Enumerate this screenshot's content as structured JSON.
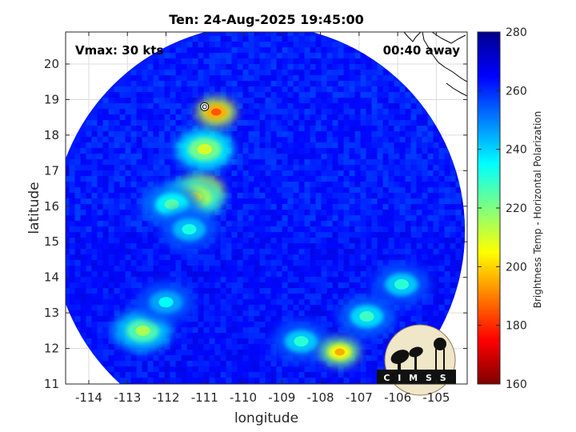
{
  "chart_data": {
    "type": "heatmap",
    "title": "Ten: 24-Aug-2025 19:45:00",
    "xlabel": "longitude",
    "ylabel": "latitude",
    "xlim": [
      -114.6,
      -104.2
    ],
    "ylim": [
      11,
      20.9
    ],
    "x_ticks": [
      "-114",
      "-113",
      "-112",
      "-111",
      "-110",
      "-109",
      "-108",
      "-107",
      "-106",
      "-105"
    ],
    "x_tick_values": [
      -114,
      -113,
      -112,
      -111,
      -110,
      -109,
      -108,
      -107,
      -106,
      -105
    ],
    "y_ticks": [
      "11",
      "12",
      "13",
      "14",
      "15",
      "16",
      "17",
      "18",
      "19",
      "20"
    ],
    "y_tick_values": [
      11,
      12,
      13,
      14,
      15,
      16,
      17,
      18,
      19,
      20
    ],
    "grid": true,
    "annotations": {
      "vmax": "Vmax: 30 kts",
      "away": "00:40 away"
    },
    "colorbar": {
      "label": "Brightness Temp - Horizontal Polarization",
      "range": [
        160,
        280
      ],
      "ticks": [
        "160",
        "180",
        "200",
        "220",
        "240",
        "260",
        "280"
      ],
      "tick_values": [
        160,
        180,
        200,
        220,
        240,
        260,
        280
      ],
      "colormap": [
        "#7f0000",
        "#ff0000",
        "#ff7f00",
        "#ffff00",
        "#7fff7f",
        "#00ffff",
        "#007fff",
        "#0000ff",
        "#00008f"
      ]
    },
    "swath": {
      "center_lon": -109.6,
      "center_lat": 15.3,
      "radius_lat": 5.8,
      "background_value": 262
    },
    "features": [
      {
        "name": "convective core",
        "lon": -111.05,
        "lat": 16.45,
        "value": 170
      },
      {
        "name": "inner convection",
        "lon": -111.25,
        "lat": 16.25,
        "value": 205
      },
      {
        "name": "rainband west",
        "lon": -111.85,
        "lat": 16.05,
        "value": 225
      },
      {
        "name": "rainband south-west",
        "lon": -111.4,
        "lat": 15.35,
        "value": 232
      },
      {
        "name": "cell north",
        "lon": -111.0,
        "lat": 17.6,
        "value": 210
      },
      {
        "name": "cell north-east",
        "lon": -110.7,
        "lat": 18.65,
        "value": 185
      },
      {
        "name": "band south-east",
        "lon": -106.8,
        "lat": 12.9,
        "value": 228
      },
      {
        "name": "band south",
        "lon": -108.5,
        "lat": 12.2,
        "value": 230
      },
      {
        "name": "cell south-east",
        "lon": -107.5,
        "lat": 11.9,
        "value": 195
      },
      {
        "name": "band far south-west",
        "lon": -112.6,
        "lat": 12.5,
        "value": 215
      },
      {
        "name": "band west",
        "lon": -112.0,
        "lat": 13.3,
        "value": 235
      },
      {
        "name": "band east",
        "lon": -105.9,
        "lat": 13.8,
        "value": 230
      }
    ],
    "center_marker": {
      "lon": -111.0,
      "lat": 18.8
    }
  },
  "logo": {
    "text": "CIMSS",
    "name": "cimss-logo"
  },
  "coastline_color": "#000000"
}
